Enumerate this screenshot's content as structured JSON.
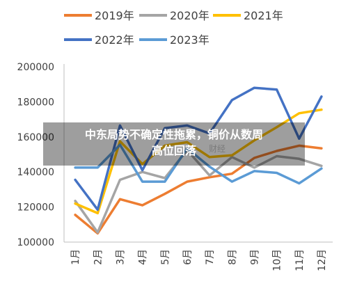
{
  "chart_data": {
    "type": "line",
    "categories": [
      "1月",
      "2月",
      "3月",
      "4月",
      "5月",
      "6月",
      "7月",
      "8月",
      "9月",
      "10月",
      "11月",
      "12月"
    ],
    "yticks": [
      "100000",
      "120000",
      "140000",
      "160000",
      "180000",
      "200000"
    ],
    "ylim": [
      100000,
      200000
    ],
    "legend_position": "top",
    "grid": false,
    "series": [
      {
        "name": "2019年",
        "color": "#ED7D31",
        "values": [
          115500,
          105000,
          124500,
          121000,
          127500,
          134500,
          137000,
          139000,
          148000,
          152000,
          155000,
          153500
        ]
      },
      {
        "name": "2020年",
        "color": "#A5A5A5",
        "values": [
          123500,
          105500,
          135500,
          140000,
          136500,
          152500,
          138000,
          148500,
          142500,
          149000,
          147500,
          143500
        ]
      },
      {
        "name": "2021年",
        "color": "#FFC000",
        "values": [
          122000,
          116500,
          157500,
          144500,
          155000,
          157000,
          148500,
          149500,
          158000,
          165500,
          173500,
          175500
        ]
      },
      {
        "name": "2022年",
        "color": "#4472C4",
        "values": [
          135500,
          118500,
          166500,
          141000,
          165000,
          166500,
          162000,
          181000,
          188000,
          187000,
          159000,
          183000
        ]
      },
      {
        "name": "2023年",
        "color": "#5B9BD5",
        "values": [
          142500,
          142500,
          155500,
          134500,
          134500,
          153500,
          143000,
          134500,
          140500,
          139500,
          133500,
          142000
        ]
      }
    ]
  },
  "overlay": {
    "line1": "中东局势不确定性拖累，铜价从数周",
    "line2": "高位回落"
  },
  "watermark": "财经"
}
